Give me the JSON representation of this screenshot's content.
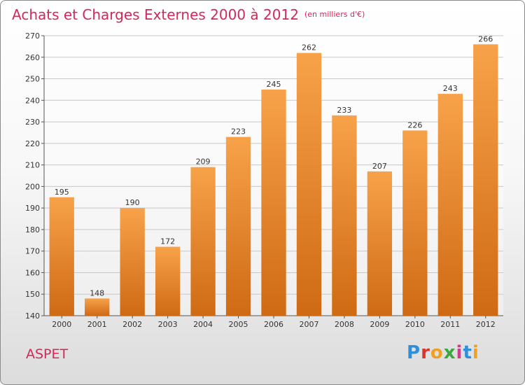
{
  "header": {
    "title": "Achats et Charges Externes 2000 à 2012",
    "unit": "(en milliers d'€)"
  },
  "location": "ASPET",
  "logo": {
    "text": "Proxiti",
    "letter_colors": [
      "#2f8fd8",
      "#e0312a",
      "#f0a020",
      "#3aa83a",
      "#d23a8a",
      "#2f8fd8",
      "#f0a020"
    ]
  },
  "colors": {
    "bar_top": "#f7a24a",
    "bar_bottom": "#cf6a14",
    "title": "#d2285a",
    "grid": "#c8c8c8"
  },
  "chart_data": {
    "type": "bar",
    "title": "Achats et Charges Externes 2000 à 2012",
    "subtitle": "(en milliers d'€)",
    "categories": [
      "2000",
      "2001",
      "2002",
      "2003",
      "2004",
      "2005",
      "2006",
      "2007",
      "2008",
      "2009",
      "2010",
      "2011",
      "2012"
    ],
    "values": [
      195,
      148,
      190,
      172,
      209,
      223,
      245,
      262,
      233,
      207,
      226,
      243,
      266
    ],
    "ylim": [
      140,
      270
    ],
    "yticks": [
      140,
      150,
      160,
      170,
      180,
      190,
      200,
      210,
      220,
      230,
      240,
      250,
      260,
      270
    ],
    "grid": true,
    "legend": "none"
  }
}
